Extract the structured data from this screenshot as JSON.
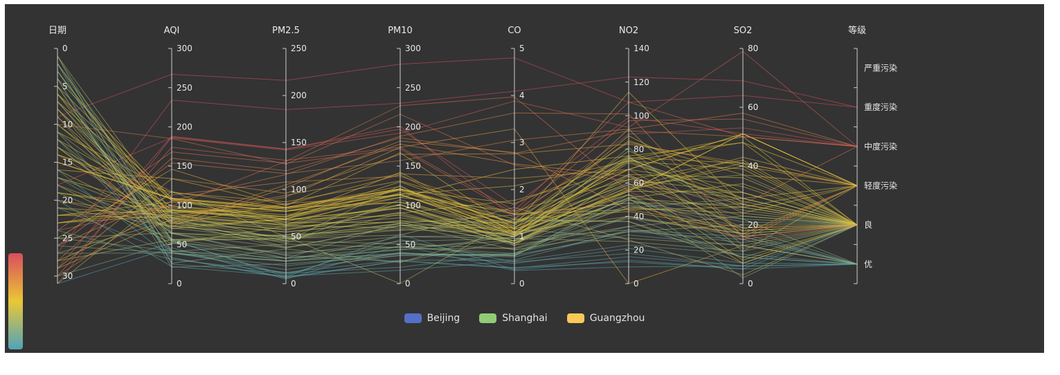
{
  "chart_data": {
    "type": "parallel",
    "background_color": "#333333",
    "axis_line_color": "#cccccc",
    "axis_text_color": "#e8e8e8",
    "line_opacity": 0.55,
    "axes": [
      {
        "id": "date",
        "name": "日期",
        "min": 0,
        "max": 31,
        "inverse": true,
        "ticks": [
          0,
          5,
          10,
          15,
          20,
          25,
          30
        ]
      },
      {
        "id": "aqi",
        "name": "AQI",
        "min": 0,
        "max": 300,
        "ticks": [
          0,
          50,
          100,
          150,
          200,
          250,
          300
        ]
      },
      {
        "id": "pm25",
        "name": "PM2.5",
        "min": 0,
        "max": 250,
        "ticks": [
          0,
          50,
          100,
          150,
          200,
          250
        ]
      },
      {
        "id": "pm10",
        "name": "PM10",
        "min": 0,
        "max": 300,
        "ticks": [
          0,
          50,
          100,
          150,
          200,
          250,
          300
        ]
      },
      {
        "id": "co",
        "name": "CO",
        "min": 0,
        "max": 5,
        "ticks": [
          0,
          1,
          2,
          3,
          4,
          5
        ]
      },
      {
        "id": "no2",
        "name": "NO2",
        "min": 0,
        "max": 140,
        "ticks": [
          0,
          20,
          40,
          60,
          80,
          100,
          120,
          140
        ]
      },
      {
        "id": "so2",
        "name": "SO2",
        "min": 0,
        "max": 80,
        "ticks": [
          0,
          20,
          40,
          60,
          80
        ]
      },
      {
        "id": "grade",
        "name": "等级",
        "type": "category",
        "categories": [
          "优",
          "良",
          "轻度污染",
          "中度污染",
          "重度污染",
          "严重污染"
        ]
      }
    ],
    "visual_map": {
      "min": 0,
      "max": 150,
      "dimension": 2,
      "colors": [
        "#50a3ba",
        "#eac736",
        "#d94e5d"
      ]
    },
    "legend": [
      {
        "label": "Beijing",
        "color": "#5470c6"
      },
      {
        "label": "Shanghai",
        "color": "#91cc75"
      },
      {
        "label": "Guangzhou",
        "color": "#fac858"
      }
    ],
    "series": [
      {
        "name": "Beijing",
        "data": [
          [
            1,
            55,
            9,
            56,
            0.46,
            18,
            6,
            "良"
          ],
          [
            2,
            25,
            11,
            21,
            0.65,
            34,
            9,
            "优"
          ],
          [
            3,
            56,
            7,
            63,
            0.3,
            14,
            5,
            "良"
          ],
          [
            4,
            33,
            7,
            29,
            0.33,
            16,
            6,
            "优"
          ],
          [
            5,
            42,
            24,
            44,
            0.76,
            40,
            16,
            "优"
          ],
          [
            6,
            82,
            58,
            90,
            1.77,
            68,
            33,
            "良"
          ],
          [
            7,
            74,
            49,
            77,
            1.46,
            48,
            27,
            "良"
          ],
          [
            8,
            78,
            55,
            80,
            1.29,
            59,
            29,
            "良"
          ],
          [
            9,
            267,
            216,
            280,
            4.8,
            108,
            64,
            "重度污染"
          ],
          [
            10,
            185,
            127,
            216,
            2.52,
            61,
            27,
            "中度污染"
          ],
          [
            11,
            39,
            19,
            38,
            0.57,
            31,
            15,
            "优"
          ],
          [
            12,
            41,
            11,
            40,
            0.43,
            21,
            7,
            "优"
          ],
          [
            13,
            64,
            38,
            74,
            1.04,
            46,
            22,
            "良"
          ],
          [
            14,
            108,
            79,
            120,
            1.7,
            75,
            41,
            "轻度污染"
          ],
          [
            15,
            108,
            63,
            116,
            1.48,
            44,
            26,
            "轻度污染"
          ],
          [
            16,
            33,
            6,
            29,
            0.34,
            13,
            5,
            "优"
          ],
          [
            17,
            94,
            66,
            110,
            1.54,
            62,
            31,
            "良"
          ],
          [
            18,
            186,
            142,
            192,
            3.88,
            93,
            79,
            "中度污染"
          ],
          [
            19,
            57,
            31,
            54,
            0.96,
            32,
            14,
            "良"
          ],
          [
            20,
            22,
            8,
            17,
            0.48,
            23,
            10,
            "优"
          ],
          [
            21,
            39,
            15,
            36,
            0.61,
            29,
            13,
            "优"
          ],
          [
            22,
            94,
            69,
            114,
            2.08,
            73,
            39,
            "良"
          ],
          [
            23,
            99,
            73,
            110,
            2.43,
            76,
            48,
            "良"
          ],
          [
            24,
            31,
            12,
            30,
            0.5,
            32,
            16,
            "优"
          ],
          [
            25,
            42,
            27,
            43,
            1,
            53,
            22,
            "优"
          ],
          [
            26,
            154,
            117,
            157,
            3.05,
            92,
            58,
            "中度污染"
          ],
          [
            27,
            234,
            185,
            230,
            4.09,
            123,
            69,
            "重度污染"
          ],
          [
            28,
            160,
            120,
            186,
            2.77,
            91,
            50,
            "中度污染"
          ],
          [
            29,
            134,
            96,
            165,
            2.76,
            83,
            41,
            "轻度污染"
          ],
          [
            30,
            52,
            24,
            60,
            1.03,
            50,
            21,
            "良"
          ],
          [
            31,
            46,
            5,
            49,
            0.28,
            10,
            6,
            "优"
          ]
        ]
      },
      {
        "name": "Shanghai",
        "data": [
          [
            1,
            91,
            45,
            125,
            0.82,
            34,
            23,
            "良"
          ],
          [
            2,
            65,
            27,
            78,
            0.86,
            45,
            29,
            "良"
          ],
          [
            3,
            83,
            60,
            84,
            1.09,
            73,
            27,
            "良"
          ],
          [
            4,
            109,
            81,
            121,
            1.28,
            68,
            51,
            "轻度污染"
          ],
          [
            5,
            106,
            77,
            114,
            1.07,
            55,
            51,
            "轻度污染"
          ],
          [
            6,
            109,
            81,
            121,
            1.28,
            68,
            51,
            "轻度污染"
          ],
          [
            7,
            106,
            77,
            114,
            1.07,
            55,
            51,
            "轻度污染"
          ],
          [
            8,
            89,
            65,
            78,
            0.86,
            51,
            26,
            "良"
          ],
          [
            9,
            53,
            33,
            47,
            0.64,
            50,
            17,
            "良"
          ],
          [
            10,
            80,
            55,
            80,
            1.01,
            75,
            24,
            "良"
          ],
          [
            11,
            117,
            81,
            124,
            1.03,
            45,
            24,
            "轻度污染"
          ],
          [
            12,
            99,
            71,
            142,
            1.1,
            62,
            42,
            "良"
          ],
          [
            13,
            95,
            69,
            130,
            1.28,
            74,
            50,
            "良"
          ],
          [
            14,
            116,
            87,
            131,
            1.47,
            84,
            40,
            "轻度污染"
          ],
          [
            15,
            108,
            80,
            121,
            1.3,
            85,
            37,
            "轻度污染"
          ],
          [
            16,
            134,
            83,
            167,
            1.16,
            57,
            43,
            "轻度污染"
          ],
          [
            17,
            79,
            43,
            107,
            1.05,
            59,
            37,
            "良"
          ],
          [
            18,
            71,
            46,
            89,
            0.86,
            64,
            25,
            "良"
          ],
          [
            19,
            97,
            71,
            113,
            1.17,
            88,
            31,
            "良"
          ],
          [
            20,
            84,
            57,
            91,
            0.85,
            55,
            31,
            "良"
          ],
          [
            21,
            87,
            63,
            101,
            0.9,
            56,
            41,
            "良"
          ],
          [
            22,
            104,
            77,
            119,
            1.09,
            73,
            48,
            "轻度污染"
          ],
          [
            23,
            87,
            62,
            100,
            1,
            72,
            28,
            "良"
          ],
          [
            24,
            168,
            128,
            172,
            1.49,
            97,
            56,
            "中度污染"
          ],
          [
            25,
            65,
            45,
            51,
            0.74,
            39,
            17,
            "良"
          ],
          [
            26,
            39,
            24,
            38,
            0.61,
            47,
            17,
            "优"
          ],
          [
            27,
            39,
            24,
            39,
            0.59,
            50,
            19,
            "优"
          ],
          [
            28,
            93,
            68,
            96,
            1.05,
            79,
            29,
            "良"
          ],
          [
            29,
            188,
            143,
            197,
            1.66,
            99,
            51,
            "中度污染"
          ],
          [
            30,
            174,
            131,
            174,
            1.55,
            108,
            50,
            "中度污染"
          ],
          [
            31,
            187,
            143,
            201,
            1.39,
            89,
            53,
            "中度污染"
          ]
        ]
      },
      {
        "name": "Guangzhou",
        "data": [
          [
            1,
            26,
            37,
            27,
            1.163,
            27,
            13,
            "优"
          ],
          [
            2,
            85,
            62,
            71,
            1.195,
            60,
            8,
            "良"
          ],
          [
            3,
            78,
            38,
            74,
            1.363,
            37,
            7,
            "良"
          ],
          [
            4,
            21,
            21,
            36,
            0.634,
            40,
            9,
            "优"
          ],
          [
            5,
            41,
            42,
            46,
            0.915,
            81,
            13,
            "优"
          ],
          [
            6,
            56,
            52,
            69,
            1.067,
            92,
            16,
            "良"
          ],
          [
            7,
            64,
            30,
            28,
            0.924,
            51,
            2,
            "良"
          ],
          [
            8,
            55,
            48,
            74,
            1.236,
            75,
            26,
            "良"
          ],
          [
            9,
            76,
            85,
            113,
            1.237,
            114,
            27,
            "良"
          ],
          [
            10,
            91,
            81,
            104,
            1.041,
            56,
            40,
            "良"
          ],
          [
            11,
            84,
            39,
            60,
            0.964,
            25,
            11,
            "良"
          ],
          [
            12,
            64,
            51,
            101,
            0.862,
            58,
            23,
            "良"
          ],
          [
            13,
            70,
            69,
            120,
            1.198,
            65,
            36,
            "良"
          ],
          [
            14,
            77,
            105,
            178,
            2.549,
            64,
            16,
            "良"
          ],
          [
            15,
            109,
            68,
            87,
            0.996,
            74,
            29,
            "轻度污染"
          ],
          [
            16,
            73,
            68,
            97,
            0.905,
            51,
            34,
            "良"
          ],
          [
            17,
            54,
            27,
            47,
            0.592,
            53,
            12,
            "良"
          ],
          [
            18,
            51,
            61,
            97,
            0.811,
            65,
            19,
            "良"
          ],
          [
            19,
            91,
            71,
            121,
            1.374,
            43,
            18,
            "良"
          ],
          [
            20,
            73,
            102,
            182,
            2.787,
            44,
            19,
            "良"
          ],
          [
            21,
            73,
            50,
            76,
            0.717,
            31,
            20,
            "良"
          ],
          [
            22,
            84,
            94,
            140,
            2.238,
            68,
            18,
            "良"
          ],
          [
            23,
            93,
            77,
            104,
            1.165,
            53,
            7,
            "良"
          ],
          [
            24,
            99,
            130,
            227,
            3.97,
            55,
            15,
            "良"
          ],
          [
            25,
            146,
            84,
            139,
            1.094,
            40,
            17,
            "轻度污染"
          ],
          [
            26,
            113,
            108,
            137,
            1.481,
            48,
            15,
            "轻度污染"
          ],
          [
            27,
            81,
            48,
            62,
            1.619,
            26,
            3,
            "良"
          ],
          [
            28,
            56,
            48,
            68,
            1.336,
            37,
            9,
            "良"
          ],
          [
            29,
            82,
            92,
            174,
            3.29,
            0,
            13,
            "良"
          ],
          [
            30,
            106,
            116,
            188,
            3.628,
            101,
            16,
            "轻度污染"
          ],
          [
            31,
            118,
            50,
            0,
            1.383,
            76,
            11,
            "轻度污染"
          ]
        ]
      }
    ]
  }
}
